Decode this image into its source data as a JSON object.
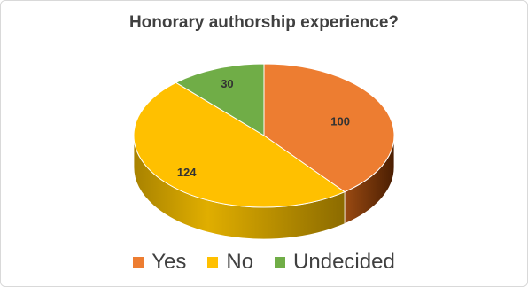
{
  "chart_data": {
    "type": "pie",
    "title": "Honorary authorship experience?",
    "categories": [
      "Yes",
      "No",
      "Undecided"
    ],
    "values": [
      100,
      124,
      30
    ],
    "colors": [
      "#ED7D31",
      "#FFC000",
      "#70AD47"
    ],
    "side_colors": [
      "#7A3508",
      "#8C6B00",
      "#3F6E22"
    ],
    "data_labels": [
      "100",
      "124",
      "30"
    ],
    "legend_position": "bottom",
    "style": "3d"
  }
}
